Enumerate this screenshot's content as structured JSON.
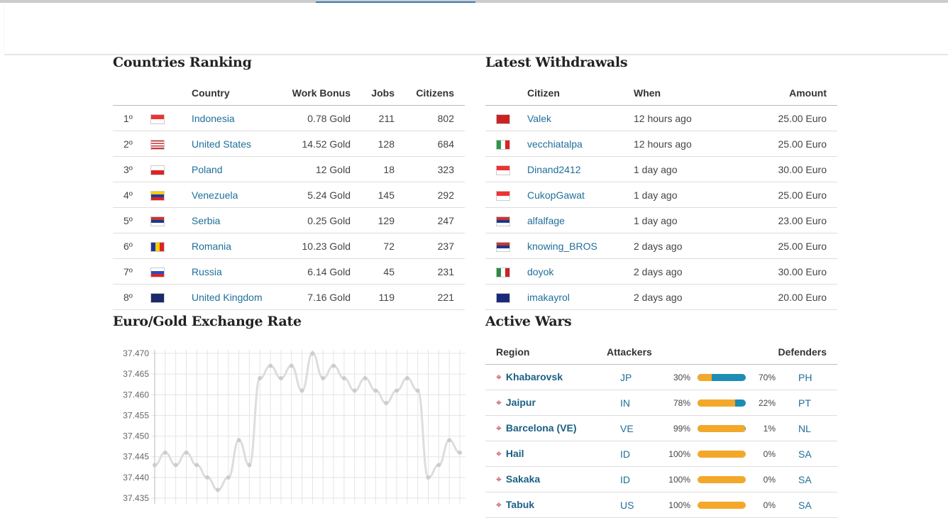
{
  "ranking": {
    "title": "Countries Ranking",
    "headers": [
      "Country",
      "Work Bonus",
      "Jobs",
      "Citizens"
    ],
    "rows": [
      {
        "rank": "1º",
        "flag": "indonesia",
        "country": "Indonesia",
        "bonus": "0.78 Gold",
        "jobs": "211",
        "citizens": "802"
      },
      {
        "rank": "2º",
        "flag": "united-states",
        "country": "United States",
        "bonus": "14.52 Gold",
        "jobs": "128",
        "citizens": "684"
      },
      {
        "rank": "3º",
        "flag": "poland",
        "country": "Poland",
        "bonus": "12 Gold",
        "jobs": "18",
        "citizens": "323"
      },
      {
        "rank": "4º",
        "flag": "venezuela",
        "country": "Venezuela",
        "bonus": "5.24 Gold",
        "jobs": "145",
        "citizens": "292"
      },
      {
        "rank": "5º",
        "flag": "serbia",
        "country": "Serbia",
        "bonus": "0.25 Gold",
        "jobs": "129",
        "citizens": "247"
      },
      {
        "rank": "6º",
        "flag": "romania",
        "country": "Romania",
        "bonus": "10.23 Gold",
        "jobs": "72",
        "citizens": "237"
      },
      {
        "rank": "7º",
        "flag": "russia",
        "country": "Russia",
        "bonus": "6.14 Gold",
        "jobs": "45",
        "citizens": "231"
      },
      {
        "rank": "8º",
        "flag": "united-kingdom",
        "country": "United Kingdom",
        "bonus": "7.16 Gold",
        "jobs": "119",
        "citizens": "221"
      }
    ]
  },
  "withdrawals": {
    "title": "Latest Withdrawals",
    "headers": [
      "Citizen",
      "When",
      "Amount"
    ],
    "rows": [
      {
        "flag": "norway",
        "citizen": "Valek",
        "when": "12 hours ago",
        "amount": "25.00 Euro"
      },
      {
        "flag": "italy",
        "citizen": "vecchiatalpa",
        "when": "12 hours ago",
        "amount": "25.00 Euro"
      },
      {
        "flag": "indonesia",
        "citizen": "Dinand2412",
        "when": "1 day ago",
        "amount": "30.00 Euro"
      },
      {
        "flag": "indonesia",
        "citizen": "CukopGawat",
        "when": "1 day ago",
        "amount": "25.00 Euro"
      },
      {
        "flag": "serbia",
        "citizen": "alfalfage",
        "when": "1 day ago",
        "amount": "23.00 Euro"
      },
      {
        "flag": "serbia",
        "citizen": "knowing_BROS",
        "when": "2 days ago",
        "amount": "25.00 Euro"
      },
      {
        "flag": "mexico",
        "citizen": "doyok",
        "when": "2 days ago",
        "amount": "30.00 Euro"
      },
      {
        "flag": "australia",
        "citizen": "imakayrol",
        "when": "2 days ago",
        "amount": "20.00 Euro"
      }
    ]
  },
  "chart_title": "Euro/Gold Exchange Rate",
  "chart_data": {
    "type": "line",
    "title": "",
    "xlabel": "",
    "ylabel": "",
    "ylim": [
      37.435,
      37.47
    ],
    "grid": true,
    "yticks": [
      "37.470",
      "37.465",
      "37.460",
      "37.455",
      "37.450",
      "37.445",
      "37.440",
      "37.435"
    ],
    "values": [
      37.443,
      37.446,
      37.443,
      37.446,
      37.443,
      37.44,
      37.437,
      37.44,
      37.449,
      37.443,
      37.464,
      37.467,
      37.464,
      37.467,
      37.461,
      37.47,
      37.464,
      37.467,
      37.464,
      37.461,
      37.464,
      37.461,
      37.458,
      37.461,
      37.464,
      37.461,
      37.44,
      37.443,
      37.449,
      37.446
    ],
    "color": "#dddddd"
  },
  "wars": {
    "title": "Active Wars",
    "headers": [
      "Region",
      "Attackers",
      "Defenders"
    ],
    "rows": [
      {
        "region": "Khabarovsk",
        "att": "JP",
        "att_pct": "30%",
        "def_pct": "70%",
        "def": "PH",
        "fill": 30
      },
      {
        "region": "Jaipur",
        "att": "IN",
        "att_pct": "78%",
        "def_pct": "22%",
        "def": "PT",
        "fill": 78
      },
      {
        "region": "Barcelona (VE)",
        "att": "VE",
        "att_pct": "99%",
        "def_pct": "1%",
        "def": "NL",
        "fill": 99
      },
      {
        "region": "Hail",
        "att": "ID",
        "att_pct": "100%",
        "def_pct": "0%",
        "def": "SA",
        "fill": 100
      },
      {
        "region": "Sakaka",
        "att": "ID",
        "att_pct": "100%",
        "def_pct": "0%",
        "def": "SA",
        "fill": 100
      },
      {
        "region": "Tabuk",
        "att": "US",
        "att_pct": "100%",
        "def_pct": "0%",
        "def": "SA",
        "fill": 100
      }
    ],
    "colors": {
      "attacker": "#f3a82a",
      "defender": "#1d8db3"
    }
  }
}
